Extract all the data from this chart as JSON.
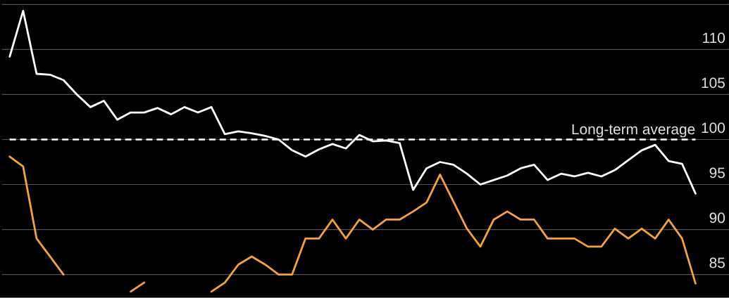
{
  "chart_data": {
    "type": "line",
    "categories": [
      null,
      null,
      null,
      null,
      null,
      null,
      null,
      null,
      null,
      null,
      null,
      null,
      null,
      null,
      null,
      null,
      null,
      null,
      null,
      null,
      null,
      null,
      null,
      null,
      null,
      null,
      null,
      null,
      null,
      null,
      null,
      null,
      null,
      null,
      null,
      null,
      null,
      null,
      null,
      null,
      null,
      null,
      null,
      null,
      null,
      null,
      null,
      null,
      null,
      null,
      null,
      null
    ],
    "series": [
      {
        "color": "#ffffff",
        "values": [
          109.2,
          114.3,
          107.3,
          107.2,
          106.6,
          105.0,
          103.6,
          104.3,
          102.2,
          103.0,
          103.0,
          103.5,
          102.8,
          103.6,
          103.0,
          103.6,
          100.6,
          100.9,
          100.7,
          100.4,
          100.0,
          98.8,
          98.1,
          98.9,
          99.5,
          99.0,
          100.5,
          99.8,
          99.9,
          99.6,
          94.4,
          96.8,
          97.5,
          97.2,
          96.2,
          95.0,
          95.5,
          96.0,
          96.8,
          97.2,
          95.5,
          96.2,
          95.9,
          96.3,
          95.9,
          96.6,
          97.7,
          98.8,
          99.4,
          97.6,
          97.3,
          94.0
        ]
      },
      {
        "color": "#f5a23a",
        "values": [
          98.1,
          97.0,
          89.0,
          87.0,
          85.0,
          null,
          null,
          null,
          null,
          83.1,
          84.1,
          null,
          null,
          null,
          null,
          83.1,
          84.1,
          86.1,
          87.0,
          86.1,
          85.0,
          85.0,
          89.0,
          89.0,
          91.1,
          89.0,
          91.1,
          90.0,
          91.1,
          91.1,
          92.0,
          93.0,
          96.1,
          93.1,
          90.1,
          88.1,
          91.1,
          92.0,
          91.1,
          91.1,
          89.0,
          89.0,
          89.0,
          88.1,
          88.1,
          90.1,
          89.0,
          90.1,
          89.0,
          91.1,
          89.0,
          84.0
        ]
      }
    ],
    "ylim": [
      82.4,
      115.5
    ],
    "yticks": [
      85,
      90,
      95,
      100,
      105,
      110,
      {
        "value": 115,
        "label": null
      }
    ],
    "grid": "y",
    "tick_labels": "y",
    "ref_lines": [
      {
        "axis": "y",
        "value": 100,
        "label": "Long-term average",
        "color": "#ffffff",
        "line_style": "dashed"
      }
    ]
  }
}
